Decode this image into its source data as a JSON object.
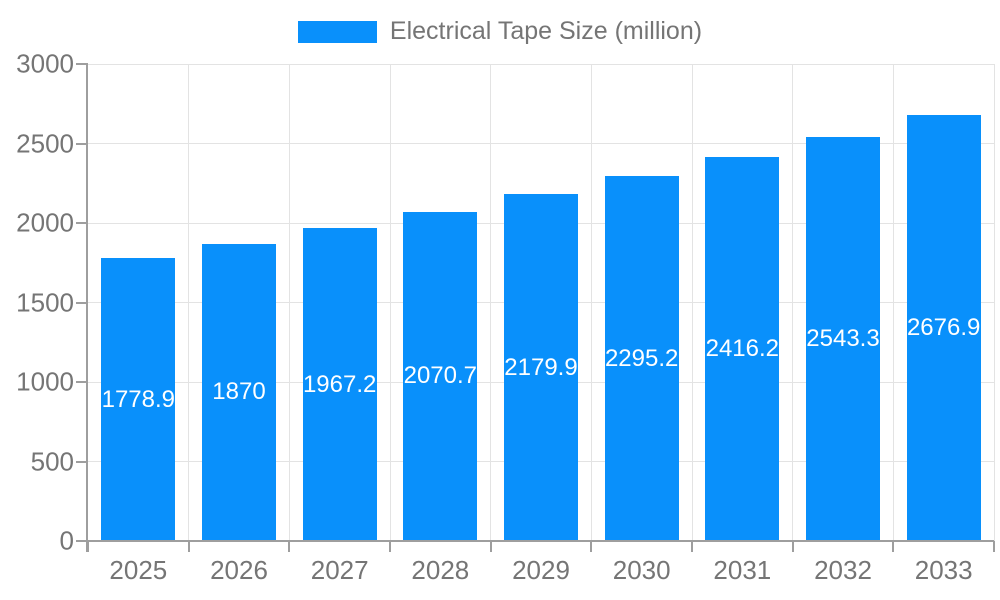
{
  "chart_data": {
    "type": "bar",
    "title": "Electrical Tape Size (million)",
    "xlabel": "",
    "ylabel": "",
    "categories": [
      "2025",
      "2026",
      "2027",
      "2028",
      "2029",
      "2030",
      "2031",
      "2032",
      "2033"
    ],
    "values": [
      1778.9,
      1870,
      1967.2,
      2070.7,
      2179.9,
      2295.2,
      2416.2,
      2543.3,
      2676.9
    ],
    "bar_labels": [
      "1778.9",
      "1870",
      "1967.2",
      "2070.7",
      "2179.9",
      "2295.2",
      "2416.2",
      "2543.3",
      "2676.9"
    ],
    "ylim": [
      0,
      3000
    ],
    "yticks": [
      0,
      500,
      1000,
      1500,
      2000,
      2500,
      3000
    ],
    "grid": true,
    "legend_position": "top-center",
    "bar_label_position": "middle",
    "colors": {
      "bar": "#0990FB",
      "axis": "#9e9e9e",
      "gridline": "#e3e3e3",
      "axis_text": "#757575",
      "bar_label_text": "#ffffff",
      "background": "#ffffff"
    }
  }
}
